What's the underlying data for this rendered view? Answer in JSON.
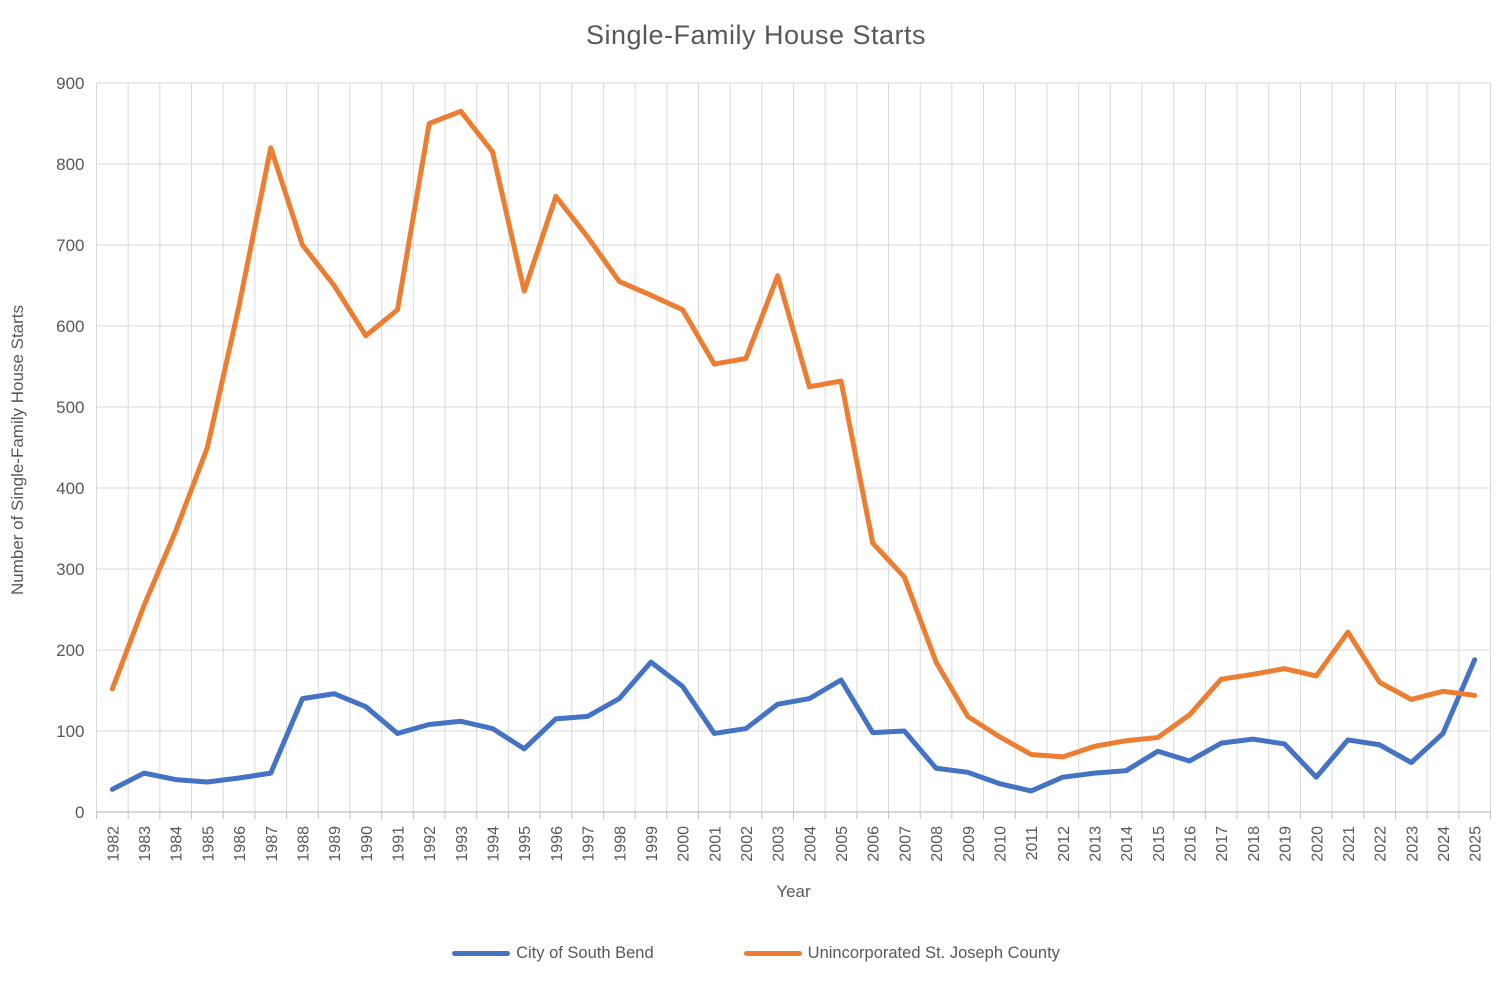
{
  "chart_data": {
    "type": "line",
    "title": "Single-Family House Starts",
    "xlabel": "Year",
    "ylabel": "Number of Single-Family House Starts",
    "ylim": [
      0,
      900
    ],
    "yticks": [
      "0",
      "100",
      "200",
      "300",
      "400",
      "500",
      "600",
      "700",
      "800",
      "900"
    ],
    "grid": true,
    "legend_position": "bottom",
    "x": [
      "1982",
      "1983",
      "1984",
      "1985",
      "1986",
      "1987",
      "1988",
      "1989",
      "1990",
      "1991",
      "1992",
      "1993",
      "1994",
      "1995",
      "1996",
      "1997",
      "1998",
      "1999",
      "2000",
      "2001",
      "2002",
      "2003",
      "2004",
      "2005",
      "2006",
      "2007",
      "2008",
      "2009",
      "2010",
      "2011",
      "2012",
      "2013",
      "2014",
      "2015",
      "2016",
      "2017",
      "2018",
      "2019",
      "2020",
      "2021",
      "2022",
      "2023",
      "2024",
      "2025"
    ],
    "series": [
      {
        "name": "City of South Bend",
        "color": "#4472C4",
        "values": [
          28,
          48,
          40,
          37,
          42,
          48,
          140,
          146,
          130,
          97,
          108,
          112,
          103,
          78,
          115,
          118,
          140,
          185,
          155,
          97,
          103,
          133,
          140,
          163,
          98,
          100,
          54,
          49,
          35,
          26,
          43,
          48,
          51,
          75,
          63,
          85,
          90,
          84,
          43,
          89,
          83,
          61,
          97,
          188
        ]
      },
      {
        "name": "Unincorporated St. Joseph County",
        "color": "#ED7D31",
        "values": [
          152,
          255,
          347,
          450,
          625,
          820,
          700,
          650,
          588,
          620,
          850,
          865,
          815,
          643,
          760,
          710,
          655,
          638,
          620,
          553,
          560,
          662,
          525,
          532,
          332,
          290,
          185,
          118,
          93,
          71,
          68,
          81,
          88,
          92,
          120,
          164,
          170,
          177,
          168,
          222,
          160,
          139,
          149,
          144
        ]
      }
    ],
    "style": {
      "gridline_color": "#D9D9D9",
      "axis_color": "#BFBFBF",
      "text_color": "#595959",
      "line_width": 5
    }
  }
}
